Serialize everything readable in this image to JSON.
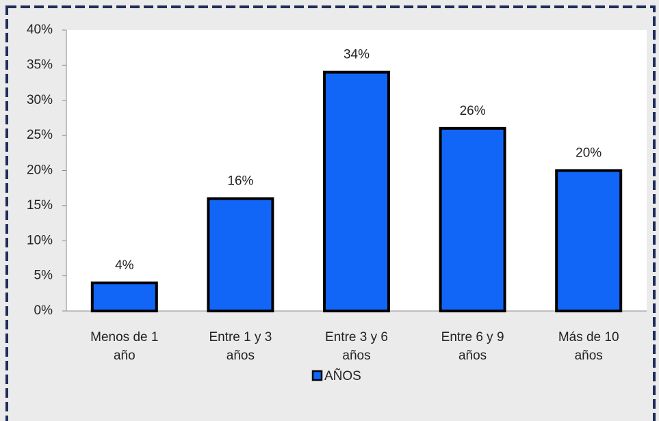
{
  "chart_data": {
    "type": "bar",
    "categories": [
      "Menos de 1 año",
      "Entre 1 y 3 años",
      "Entre 3 y 6 años",
      "Entre 6 y 9 años",
      "Más de 10 años"
    ],
    "series": [
      {
        "name": "AÑOS",
        "color": "#1166f7",
        "values": [
          4,
          16,
          34,
          26,
          20
        ],
        "value_labels": [
          "4%",
          "16%",
          "34%",
          "26%",
          "20%"
        ]
      }
    ],
    "ylim": [
      0,
      40
    ],
    "yticks": [
      {
        "value": 0,
        "label": "0%"
      },
      {
        "value": 5,
        "label": "5%"
      },
      {
        "value": 10,
        "label": "10%"
      },
      {
        "value": 15,
        "label": "15%"
      },
      {
        "value": 20,
        "label": "20%"
      },
      {
        "value": 25,
        "label": "25%"
      },
      {
        "value": 30,
        "label": "30%"
      },
      {
        "value": 35,
        "label": "35%"
      },
      {
        "value": 40,
        "label": "40%"
      }
    ],
    "grid": false,
    "legend": "bottom"
  }
}
